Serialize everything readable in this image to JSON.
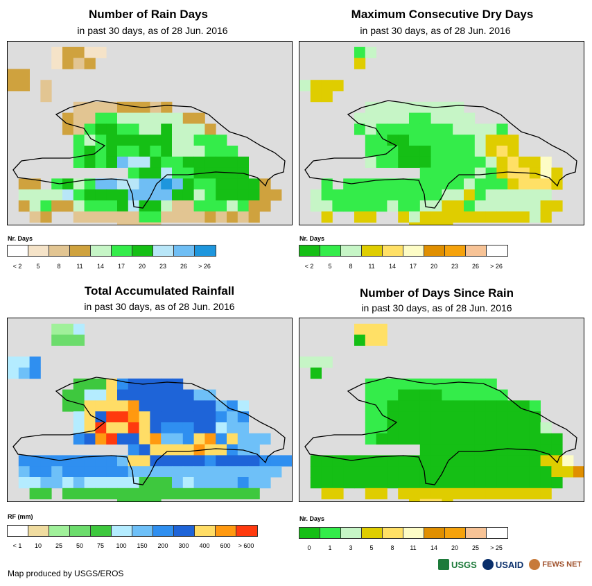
{
  "panels": [
    {
      "title": "Number of Rain Days",
      "subtitle": "in past 30 days, as of 28 Jun. 2016",
      "legend_title": "Nr. Days",
      "legend_colors": [
        "#ffffff",
        "#f5e3c8",
        "#e2c592",
        "#cfa23e",
        "#c6f5c6",
        "#34ec4a",
        "#15bf15",
        "#b8e6f8",
        "#6fbef4",
        "#1e96dd"
      ],
      "legend_labels": [
        "< 2",
        "5",
        "8",
        "11",
        "14",
        "17",
        "20",
        "23",
        "26",
        "> 26"
      ],
      "grid_indices": [
        "..........................",
        "....13311.................",
        "....1323..................",
        "33........................",
        "33.2......................",
        "...2......................",
        "......222233323...........",
        ".....3225544444433........",
        ".....32566554464443.......",
        "......54566666644555......",
        "......565655656444555.....",
        "......5656877655666666....",
        "...........56675566666....",
        ".33.56458877889865566663..",
        ".444475666688886645666633.",
        ".34533455567664225554533..",
        "..23..22222255222232323...",
        "..........2222............",
        "..........2222............",
        "...........22............."
      ]
    },
    {
      "title": "Maximum Consecutive Dry Days",
      "subtitle": "in past 30 days, as of 28 Jun. 2016",
      "legend_title": "Nr. Days",
      "legend_colors": [
        "#15bf15",
        "#34ec4a",
        "#c6f5c6",
        "#dfcd00",
        "#ffe066",
        "#fdfcc6",
        "#e08f00",
        "#f5a20c",
        "#f7c396",
        "#ffffff"
      ],
      "legend_labels": [
        "< 2",
        "5",
        "8",
        "11",
        "14",
        "17",
        "20",
        "23",
        "26",
        "> 26"
      ],
      "grid_indices": [
        "..........................",
        ".....12...................",
        ".....3....................",
        "..........................",
        "2333......................",
        ".33.......................",
        "......222222222...........",
        ".....22222112222..........",
        ".....12111111122221.......",
        "......11001111112333......",
        "......11100011112343......",
        "......21100011111234335...",
        "...........1111121344353..",
        "..1.11111111111211134443..",
        ".2111111111112231222222...",
        ".22111112112233122222233..",
        "..3..33..32333333333323...",
        "..........3333............",
        "..........3443............",
        "...........43............."
      ]
    },
    {
      "title": "Total Accumulated Rainfall",
      "subtitle": "in past 30 days, as of 28 Jun. 2016",
      "legend_title": "RF (mm)",
      "legend_colors": [
        "#ffffff",
        "#f0dca0",
        "#a0f09a",
        "#6cdc6c",
        "#3ec83e",
        "#b4ecff",
        "#6ec0f8",
        "#2f8ff0",
        "#1e64d8",
        "#ffdd66",
        "#ff9910",
        "#ff3a0e"
      ],
      "legend_labels": [
        "< 1",
        "10",
        "25",
        "50",
        "75",
        "100",
        "150",
        "200",
        "300",
        "400",
        "600",
        "> 600"
      ],
      "grid_indices": [
        "..........................",
        "....225...................",
        "....333...................",
        "..........................",
        "557.......................",
        "567.......................",
        "......4449788888..........",
        ".....44559888888866.......",
        ".....449999a8888888675....",
        "......598bba9888888767....",
        "......59b99b9877788566....",
        "......78ab889a6679a79666..",
        "...........789999a99766...",
        ".7777777776998888878888777",
        ".677677777766666666666666.",
        ".55665655555444656666766..",
        "..44.444444444444444444...",
        "..........4444............",
        "..........4444............",
        "...........44............."
      ]
    },
    {
      "title": "Number of Days Since Rain",
      "subtitle": "in past 30 days, as of 28 Jun. 2016",
      "legend_title": "Nr. Days",
      "legend_colors": [
        "#15bf15",
        "#34ec4a",
        "#c6f5c6",
        "#dfcd00",
        "#ffe066",
        "#fdfcc6",
        "#e08f00",
        "#f5a20c",
        "#f7c396",
        "#ffffff"
      ],
      "legend_labels": [
        "0",
        "1",
        "3",
        "5",
        "8",
        "11",
        "14",
        "20",
        "25",
        "> 25"
      ],
      "grid_indices": [
        "..........................",
        ".....444..................",
        ".....044..................",
        "..........................",
        "222.......................",
        ".0........................",
        "......111111111111........",
        "......1110000111111.......",
        "......1100000000000001....",
        "......1100000000000000....",
        "......11000000000000002...",
        "......100000000000000000..",
        "...........0000000000000..",
        ".000000000000000000000335.",
        ".0000000000000000000000336",
        ".00000000000000000000000..",
        "..33..33.33333333333333...",
        "..........3443............",
        "..........3443............",
        "...........33............."
      ]
    }
  ],
  "credit": "Map produced by USGS/EROS",
  "logos": [
    "USGS",
    "USAID",
    "FEWS NET"
  ]
}
